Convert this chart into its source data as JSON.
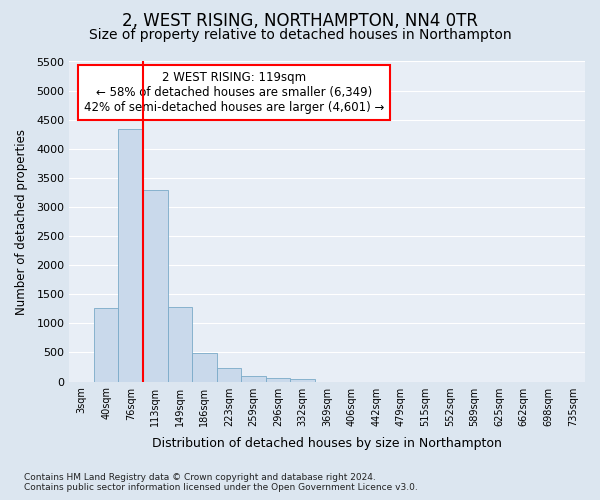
{
  "title": "2, WEST RISING, NORTHAMPTON, NN4 0TR",
  "subtitle": "Size of property relative to detached houses in Northampton",
  "xlabel": "Distribution of detached houses by size in Northampton",
  "ylabel": "Number of detached properties",
  "footer_line1": "Contains HM Land Registry data © Crown copyright and database right 2024.",
  "footer_line2": "Contains public sector information licensed under the Open Government Licence v3.0.",
  "annotation_line1": "2 WEST RISING: 119sqm",
  "annotation_line2": "← 58% of detached houses are smaller (6,349)",
  "annotation_line3": "42% of semi-detached houses are larger (4,601) →",
  "bar_labels": [
    "3sqm",
    "40sqm",
    "76sqm",
    "113sqm",
    "149sqm",
    "186sqm",
    "223sqm",
    "259sqm",
    "296sqm",
    "332sqm",
    "369sqm",
    "406sqm",
    "442sqm",
    "479sqm",
    "515sqm",
    "552sqm",
    "589sqm",
    "625sqm",
    "662sqm",
    "698sqm",
    "735sqm"
  ],
  "bar_values": [
    0,
    1270,
    4340,
    3300,
    1280,
    490,
    230,
    90,
    60,
    50,
    0,
    0,
    0,
    0,
    0,
    0,
    0,
    0,
    0,
    0,
    0
  ],
  "bar_color": "#c9d9eb",
  "bar_edge_color": "#7aaac8",
  "red_line_index": 3,
  "ylim": [
    0,
    5500
  ],
  "yticks": [
    0,
    500,
    1000,
    1500,
    2000,
    2500,
    3000,
    3500,
    4000,
    4500,
    5000,
    5500
  ],
  "background_color": "#dce6f0",
  "plot_bg_color": "#e8eef6",
  "grid_color": "#ffffff",
  "title_fontsize": 12,
  "subtitle_fontsize": 10
}
